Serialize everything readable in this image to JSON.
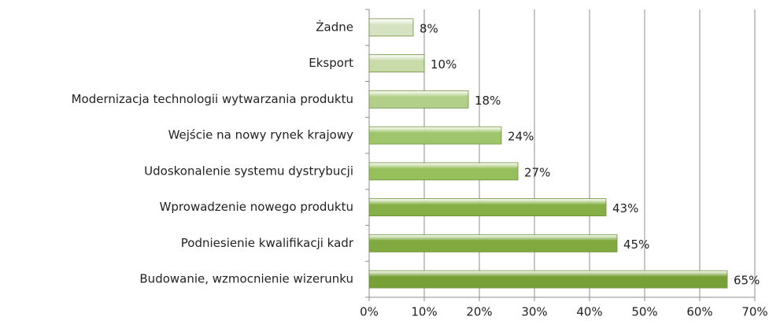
{
  "chart_data": {
    "type": "barh",
    "categories": [
      "Żadne",
      "Eksport",
      "Modernizacja technologii wytwarzania produktu",
      "Wejście na nowy rynek krajowy",
      "Udoskonalenie systemu dystrybucji",
      "Wprowadzenie nowego produktu",
      "Podniesienie kwalifikacji kadr",
      "Budowanie, wzmocnienie wizerunku"
    ],
    "values": [
      8,
      10,
      18,
      24,
      27,
      43,
      45,
      65
    ],
    "value_labels": [
      "8%",
      "10%",
      "18%",
      "24%",
      "27%",
      "43%",
      "45%",
      "65%"
    ],
    "colors": [
      "#d6e3c2",
      "#c8dba9",
      "#b3d08a",
      "#9fc66a",
      "#97c05c",
      "#86b046",
      "#80aa40",
      "#77a036"
    ],
    "xlim": [
      0,
      70
    ],
    "xticks": [
      {
        "value": 0,
        "label": "0%"
      },
      {
        "value": 10,
        "label": "10%"
      },
      {
        "value": 20,
        "label": "20%"
      },
      {
        "value": 30,
        "label": "30%"
      },
      {
        "value": 40,
        "label": "40%"
      },
      {
        "value": 50,
        "label": "50%"
      },
      {
        "value": 60,
        "label": "60%"
      },
      {
        "value": 70,
        "label": "70%"
      }
    ],
    "grid": true
  }
}
